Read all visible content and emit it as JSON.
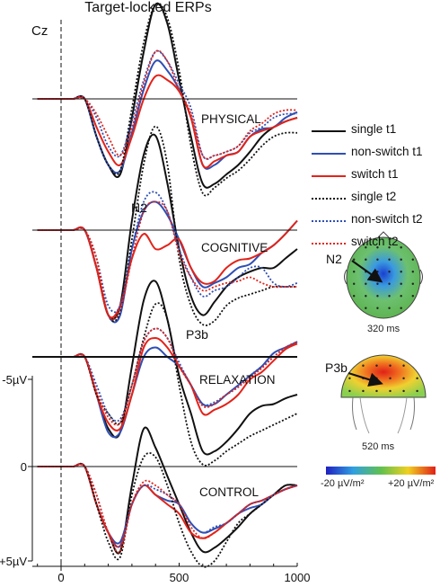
{
  "title": "Target-locked ERPs",
  "channel": "Cz",
  "colors": {
    "black": "#111111",
    "blue": "#2f4fb4",
    "red": "#e2231a"
  },
  "legend": [
    {
      "label": "single t1",
      "color": "#111111",
      "style": "solid"
    },
    {
      "label": "non-switch t1",
      "color": "#2f4fb4",
      "style": "solid"
    },
    {
      "label": "switch t1",
      "color": "#e2231a",
      "style": "solid"
    },
    {
      "label": "single t2",
      "color": "#111111",
      "style": "dotted"
    },
    {
      "label": "non-switch t2",
      "color": "#2f4fb4",
      "style": "dotted"
    },
    {
      "label": "switch t2",
      "color": "#e2231a",
      "style": "dotted"
    }
  ],
  "topomaps": [
    {
      "component": "N2",
      "time": "320 ms",
      "map_color": "blue-center"
    },
    {
      "component": "P3b",
      "time": "520 ms",
      "map_color": "red-center"
    }
  ],
  "colorbar": {
    "min_label": "-20 µV/m²",
    "max_label": "+20 µV/m²"
  },
  "chart_data": {
    "type": "line",
    "xlabel": "",
    "ylabel": "",
    "x_ticks": [
      "0",
      "500",
      "1000"
    ],
    "xlim": [
      -100,
      1000
    ],
    "y_ticks": [
      "-5µV",
      "0",
      "+5µV"
    ],
    "ylim": [
      5,
      -5
    ],
    "y_inverted": true,
    "stimulus_onset_line": 0,
    "annotations": [
      "N2",
      "P3b"
    ],
    "x": [
      -100,
      -50,
      0,
      50,
      100,
      150,
      200,
      250,
      300,
      350,
      400,
      450,
      500,
      550,
      600,
      650,
      700,
      750,
      800,
      850,
      900,
      950,
      1000
    ],
    "panels": [
      {
        "name": "PHYSICAL",
        "series": [
          {
            "name": "single t1",
            "values": [
              0,
              0,
              0,
              0,
              0,
              2.0,
              3.5,
              4.0,
              1.0,
              -2.5,
              -5.0,
              -4.0,
              -1.0,
              2.0,
              4.5,
              4.5,
              4.0,
              3.5,
              2.8,
              2.0,
              1.5,
              1.2,
              1.0
            ]
          },
          {
            "name": "non-switch t1",
            "values": [
              0,
              0,
              0,
              0,
              0,
              2.0,
              3.5,
              3.8,
              1.8,
              -0.5,
              -2.0,
              -1.5,
              -0.5,
              1.0,
              3.5,
              3.5,
              3.0,
              2.8,
              2.0,
              1.6,
              1.5,
              1.0,
              0.7
            ]
          },
          {
            "name": "switch t1",
            "values": [
              0,
              0,
              0,
              0,
              0,
              1.5,
              2.8,
              3.5,
              2.0,
              0.0,
              -1.2,
              -1.0,
              -0.4,
              1.0,
              3.5,
              3.3,
              3.0,
              2.8,
              2.0,
              1.7,
              1.5,
              1.2,
              1.0
            ]
          },
          {
            "name": "single t2",
            "values": [
              0,
              0,
              0,
              0,
              0,
              2.0,
              3.5,
              3.8,
              0.5,
              -3.0,
              -5.0,
              -4.3,
              -1.5,
              2.5,
              5.0,
              4.7,
              4.2,
              3.8,
              3.2,
              2.5,
              2.0,
              1.8,
              1.8
            ]
          },
          {
            "name": "non-switch t2",
            "values": [
              0,
              0,
              0,
              0,
              0,
              1.0,
              2.5,
              3.0,
              1.2,
              -1.0,
              -2.5,
              -2.0,
              -0.8,
              0.5,
              3.0,
              3.0,
              2.8,
              2.5,
              1.8,
              1.5,
              1.0,
              0.8,
              0.8
            ]
          },
          {
            "name": "switch t2",
            "values": [
              0,
              0,
              0,
              0,
              0,
              0.8,
              2.0,
              3.0,
              1.5,
              -0.8,
              -2.5,
              -2.0,
              -0.5,
              0.8,
              3.0,
              3.0,
              2.8,
              2.5,
              1.7,
              1.3,
              0.8,
              0.6,
              0.6
            ]
          }
        ]
      },
      {
        "name": "COGNITIVE",
        "series": [
          {
            "name": "single t1",
            "values": [
              0,
              0,
              0,
              0,
              0,
              2.0,
              4.5,
              4.0,
              -0.5,
              -4.0,
              -5.0,
              -2.5,
              1.0,
              3.5,
              4.5,
              3.8,
              3.0,
              2.5,
              2.2,
              2.0,
              2.0,
              1.5,
              1.0
            ]
          },
          {
            "name": "non-switch t1",
            "values": [
              0,
              0,
              0,
              0,
              0,
              2.0,
              4.5,
              4.5,
              1.0,
              -1.0,
              -1.5,
              -0.8,
              0.5,
              2.0,
              3.0,
              2.8,
              2.5,
              2.0,
              1.8,
              1.2,
              0.8,
              0.2,
              -0.5
            ]
          },
          {
            "name": "switch t1",
            "values": [
              0,
              0,
              0,
              0,
              0,
              2.0,
              4.5,
              4.0,
              1.5,
              0.2,
              1.0,
              0.8,
              0.5,
              2.0,
              2.8,
              2.7,
              2.0,
              1.6,
              1.5,
              1.2,
              0.8,
              0.2,
              -0.5
            ]
          },
          {
            "name": "single t2",
            "values": [
              0,
              0,
              0,
              0,
              0,
              1.5,
              4.5,
              4.3,
              0.5,
              -3.5,
              -5.5,
              -3.5,
              1.5,
              4.0,
              5.0,
              4.8,
              4.0,
              3.6,
              3.4,
              3.2,
              3.0,
              3.0,
              3.0
            ]
          },
          {
            "name": "non-switch t2",
            "values": [
              0,
              0,
              0,
              0,
              0,
              1.5,
              4.0,
              4.0,
              1.0,
              -1.5,
              -2.0,
              -1.0,
              1.0,
              2.5,
              3.5,
              3.2,
              3.0,
              2.5,
              2.0,
              2.0,
              2.8,
              3.0,
              2.8
            ]
          },
          {
            "name": "switch t2",
            "values": [
              0,
              0,
              0,
              0,
              0,
              1.5,
              4.5,
              4.2,
              1.5,
              -1.0,
              -1.5,
              -1.0,
              1.2,
              2.5,
              3.2,
              3.0,
              2.8,
              2.7,
              2.5,
              2.8,
              3.0,
              3.0,
              3.0
            ]
          }
        ]
      },
      {
        "name": "RELAXATION",
        "series": [
          {
            "name": "single t1",
            "values": [
              0,
              0,
              0,
              0,
              0,
              2.0,
              3.8,
              4.0,
              0.5,
              -3.0,
              -4.0,
              -2.0,
              1.0,
              3.0,
              5.0,
              5.0,
              4.5,
              3.8,
              3.0,
              2.6,
              2.5,
              2.2,
              2.0
            ]
          },
          {
            "name": "non-switch t1",
            "values": [
              0,
              0,
              0,
              0,
              0,
              2.0,
              4.0,
              4.0,
              2.0,
              0.0,
              -0.5,
              0.0,
              0.5,
              1.5,
              2.5,
              2.5,
              2.0,
              1.5,
              1.0,
              0.5,
              -0.2,
              -0.5,
              -0.8
            ]
          },
          {
            "name": "switch t1",
            "values": [
              0,
              0,
              0,
              0,
              0,
              2.0,
              3.5,
              3.8,
              2.0,
              -0.5,
              -1.0,
              -0.5,
              0.5,
              1.5,
              3.0,
              2.8,
              2.5,
              2.0,
              1.2,
              0.8,
              0.2,
              -0.4,
              -0.7
            ]
          },
          {
            "name": "single t2",
            "values": [
              0,
              0,
              0,
              0,
              0,
              2.0,
              3.0,
              3.5,
              1.5,
              -1.0,
              -2.8,
              -2.0,
              1.5,
              4.5,
              5.7,
              5.5,
              5.0,
              4.6,
              4.2,
              3.9,
              3.6,
              3.3,
              3.0
            ]
          },
          {
            "name": "non-switch t2",
            "values": [
              0,
              0,
              0,
              0,
              0,
              1.5,
              3.0,
              3.3,
              1.5,
              -0.8,
              -1.5,
              -1.0,
              0.3,
              1.5,
              2.5,
              2.4,
              2.0,
              1.6,
              1.0,
              0.5,
              0.0,
              -0.5,
              -0.8
            ]
          },
          {
            "name": "switch t2",
            "values": [
              0,
              0,
              0,
              0,
              0,
              1.8,
              3.2,
              3.5,
              1.5,
              -0.8,
              -1.5,
              -1.0,
              0.5,
              1.5,
              2.6,
              2.5,
              2.0,
              1.6,
              1.1,
              0.6,
              0.0,
              -0.5,
              -0.8
            ]
          }
        ]
      },
      {
        "name": "CONTROL",
        "series": [
          {
            "name": "single t1",
            "values": [
              0,
              0,
              0,
              0,
              0,
              2.0,
              3.5,
              4.5,
              1.0,
              -2.0,
              -1.0,
              0.5,
              2.0,
              3.5,
              4.5,
              4.3,
              3.8,
              3.2,
              2.5,
              2.0,
              1.5,
              1.0,
              1.0
            ]
          },
          {
            "name": "non-switch t1",
            "values": [
              0,
              0,
              0,
              0,
              0,
              2.0,
              3.5,
              4.0,
              2.0,
              1.0,
              1.5,
              1.8,
              2.0,
              3.0,
              3.5,
              3.3,
              3.0,
              2.5,
              2.2,
              2.0,
              1.5,
              1.2,
              1.0
            ]
          },
          {
            "name": "switch t1",
            "values": [
              0,
              0,
              0,
              0,
              0,
              2.0,
              3.5,
              4.2,
              2.0,
              1.0,
              1.5,
              2.0,
              2.5,
              3.5,
              3.8,
              3.5,
              3.0,
              2.5,
              2.0,
              1.8,
              1.5,
              1.2,
              1.0
            ]
          },
          {
            "name": "single t2",
            "values": [
              0,
              0,
              0,
              0,
              0,
              2.0,
              4.0,
              4.8,
              1.5,
              -0.5,
              -0.5,
              1.0,
              3.0,
              4.5,
              5.3,
              5.0,
              4.0,
              3.0,
              2.5,
              2.0,
              1.5,
              1.0,
              1.0
            ]
          },
          {
            "name": "non-switch t2",
            "values": [
              0,
              0,
              0,
              0,
              0,
              1.5,
              3.5,
              4.2,
              2.0,
              1.0,
              1.2,
              1.5,
              2.0,
              3.0,
              3.5,
              3.2,
              3.0,
              2.5,
              2.0,
              1.8,
              1.5,
              1.2,
              1.0
            ]
          },
          {
            "name": "switch t2",
            "values": [
              0,
              0,
              0,
              0,
              0,
              1.5,
              3.5,
              4.5,
              2.0,
              0.8,
              1.0,
              1.5,
              2.0,
              3.2,
              3.8,
              3.5,
              3.0,
              2.5,
              2.0,
              1.8,
              1.5,
              1.2,
              1.0
            ]
          }
        ]
      }
    ]
  }
}
